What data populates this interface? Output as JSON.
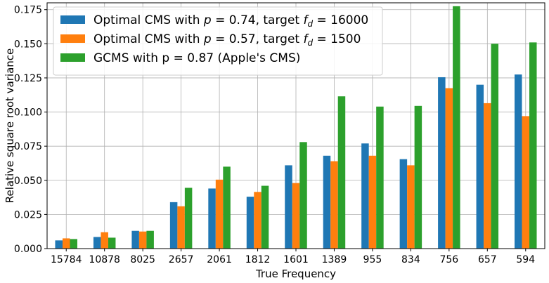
{
  "chart_data": {
    "type": "bar",
    "xlabel": "True Frequency",
    "ylabel": "Relative square root variance",
    "ylim": [
      0,
      0.18
    ],
    "yticks": [
      "0.000",
      "0.025",
      "0.050",
      "0.075",
      "0.100",
      "0.125",
      "0.150",
      "0.175"
    ],
    "grid": true,
    "legend_position": "top-left",
    "categories": [
      "15784",
      "10878",
      "8025",
      "2657",
      "2061",
      "1812",
      "1601",
      "1389",
      "955",
      "834",
      "756",
      "657",
      "594"
    ],
    "series": [
      {
        "name": "Optimal CMS with p = 0.74, target f_d = 16000",
        "legend": {
          "pre": "Optimal CMS with ",
          "math1": "p",
          "mid": " = 0.74, target ",
          "math2": "f",
          "sub": "d",
          "post": " = 16000"
        },
        "color": "#1f77b4",
        "values": [
          0.006,
          0.0085,
          0.013,
          0.034,
          0.044,
          0.038,
          0.061,
          0.068,
          0.077,
          0.0655,
          0.1255,
          0.12,
          0.1275
        ]
      },
      {
        "name": "Optimal CMS with p = 0.57, target f_d = 1500",
        "legend": {
          "pre": "Optimal CMS with ",
          "math1": "p",
          "mid": " = 0.57, target ",
          "math2": "f",
          "sub": "d",
          "post": " = 1500"
        },
        "color": "#ff7f0e",
        "values": [
          0.0075,
          0.012,
          0.0125,
          0.031,
          0.0505,
          0.0415,
          0.048,
          0.064,
          0.068,
          0.061,
          0.1175,
          0.1065,
          0.097
        ]
      },
      {
        "name": "GCMS with p = 0.87 (Apple's CMS)",
        "legend": {
          "pre": "GCMS with p = 0.87 (Apple's CMS)"
        },
        "color": "#2ca02c",
        "values": [
          0.007,
          0.008,
          0.013,
          0.0445,
          0.06,
          0.046,
          0.078,
          0.1115,
          0.104,
          0.1045,
          0.1775,
          0.15,
          0.151
        ]
      }
    ]
  }
}
